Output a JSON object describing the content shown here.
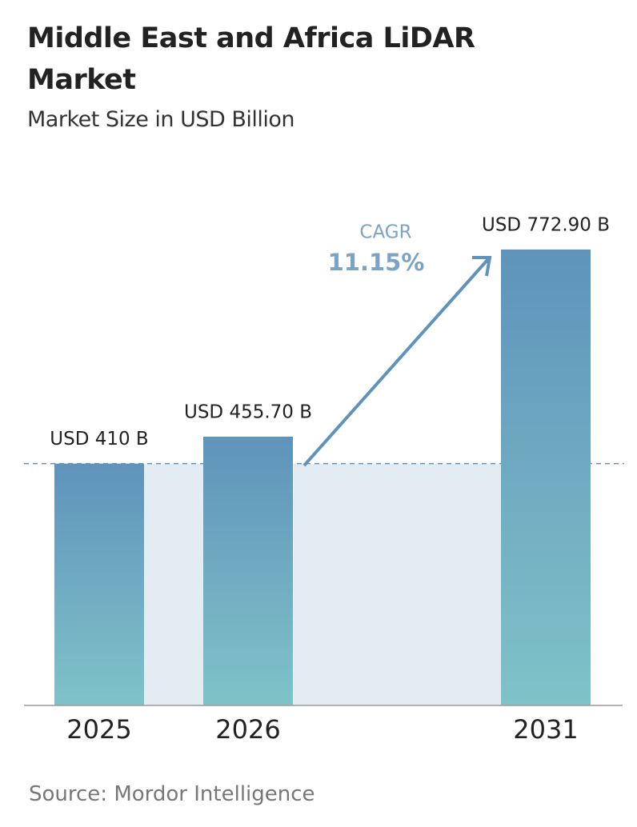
{
  "chart_data": {
    "type": "bar",
    "title": "Middle East and Africa LiDAR Market",
    "subtitle": "Market Size in USD Billion",
    "categories": [
      "2025",
      "2026",
      "2031"
    ],
    "values": [
      410,
      455.7,
      772.9
    ],
    "value_labels": [
      "USD 410 B",
      "USD 455.70 B",
      "USD 772.90 B"
    ],
    "color": "#5f93bb",
    "annotations": {
      "cagr_label": "CAGR",
      "cagr_value": "11.15%"
    },
    "source": "Source:  Mordor Intelligence"
  }
}
